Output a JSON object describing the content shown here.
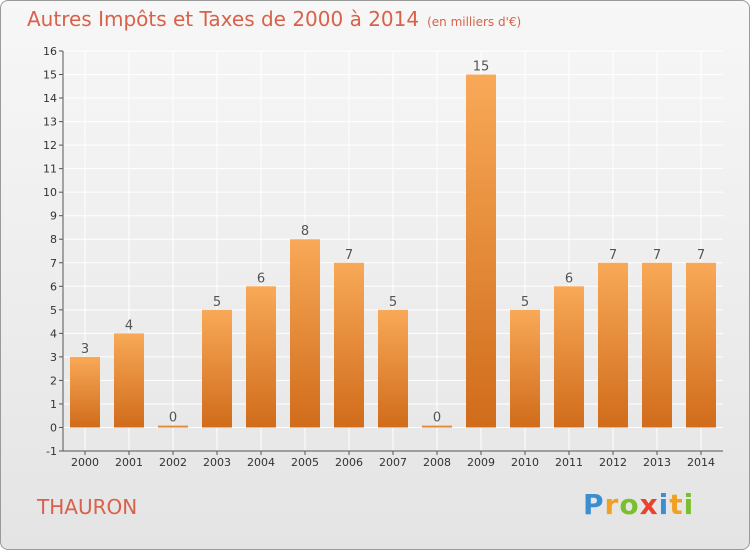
{
  "title": "Autres Impôts et Taxes de 2000 à 2014",
  "unit": "(en milliers d'€)",
  "commune": "THAURON",
  "logo": {
    "letters": [
      "P",
      "r",
      "o",
      "x",
      "i",
      "t",
      "i"
    ]
  },
  "colors": {
    "title": "#d9614a",
    "bar_top": "#f8a957",
    "bar_bottom": "#d06c1b",
    "grid": "#ffffff",
    "logo": [
      "#3b8fd1",
      "#f0a022",
      "#7cbf2e",
      "#e9432f",
      "#3b8fd1",
      "#f0a022",
      "#7cbf2e"
    ]
  },
  "chart_data": {
    "type": "bar",
    "categories": [
      "2000",
      "2001",
      "2002",
      "2003",
      "2004",
      "2005",
      "2006",
      "2007",
      "2008",
      "2009",
      "2010",
      "2011",
      "2012",
      "2013",
      "2014"
    ],
    "values": [
      3,
      4,
      0,
      5,
      6,
      8,
      7,
      5,
      0,
      15,
      5,
      6,
      7,
      7,
      7
    ],
    "data_labels": [
      "3",
      "4",
      "0",
      "5",
      "6",
      "8",
      "7",
      "5",
      "0",
      "15",
      "5",
      "6",
      "7",
      "7",
      "7"
    ],
    "yticks": [
      -1,
      0,
      1,
      2,
      3,
      4,
      5,
      6,
      7,
      8,
      9,
      10,
      11,
      12,
      13,
      14,
      15,
      16
    ],
    "ylim": [
      -1,
      16
    ],
    "grid": true,
    "legend": false
  }
}
